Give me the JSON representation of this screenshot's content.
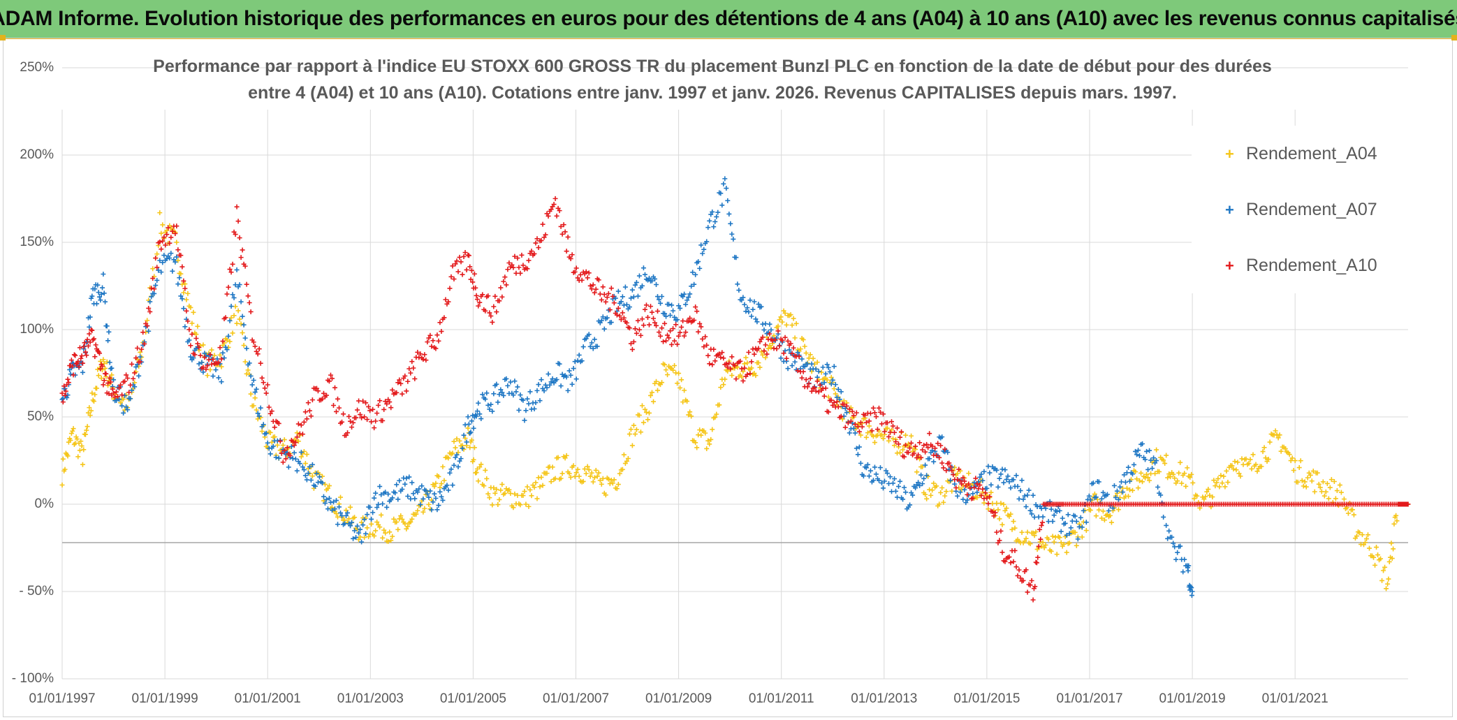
{
  "banner": {
    "title": "ADAM Informe. Evolution historique des performances en euros pour des détentions de 4 ans (A04) à 10 ans (A10) avec les revenus connus capitalisés"
  },
  "colors": {
    "banner_bg": "#7ec97a",
    "accent": "#e3b21c",
    "grid": "#d9d9d9",
    "zero_line": "#a6a6a6",
    "text": "#595959"
  },
  "chart_data": {
    "type": "scatter",
    "title_lines": [
      "Performance par rapport à l'indice EU STOXX 600 GROSS TR  du placement Bunzl PLC en fonction de la date de début pour des durées",
      "entre 4 (A04) et 10 ans (A10). Cotations entre janv. 1997 et janv. 2026. Revenus CAPITALISES depuis mars. 1997."
    ],
    "xlabel": "",
    "ylabel": "",
    "xlim": [
      1997.0,
      2023.2
    ],
    "ylim": [
      -100,
      250
    ],
    "y_ticks": [
      250,
      200,
      150,
      100,
      50,
      0,
      -50,
      -100
    ],
    "y_tick_labels": [
      "250%",
      "200%",
      "150%",
      "100%",
      "50%",
      "0%",
      "- 50%",
      "- 100%"
    ],
    "x_ticks": [
      1997,
      1999,
      2001,
      2003,
      2005,
      2007,
      2009,
      2011,
      2013,
      2015,
      2017,
      2019,
      2021
    ],
    "x_tick_labels": [
      "01/01/1997",
      "01/01/1999",
      "01/01/2001",
      "01/01/2003",
      "01/01/2005",
      "01/01/2007",
      "01/01/2009",
      "01/01/2011",
      "01/01/2013",
      "01/01/2015",
      "01/01/2017",
      "01/01/2019",
      "01/01/2021"
    ],
    "marker": "+",
    "legend_position": "top-right",
    "series": [
      {
        "name": "Rendement_A04",
        "color": "#f5c518",
        "x": [
          1997.0,
          1997.2,
          1997.4,
          1997.6,
          1997.8,
          1998.0,
          1998.3,
          1998.6,
          1998.9,
          1999.2,
          1999.5,
          1999.8,
          2000.1,
          2000.4,
          2000.7,
          2001.0,
          2001.3,
          2001.6,
          2001.9,
          2002.2,
          2002.5,
          2002.8,
          2003.1,
          2003.4,
          2003.7,
          2004.0,
          2004.3,
          2004.6,
          2004.9,
          2005.1,
          2005.4,
          2005.7,
          2006.0,
          2006.3,
          2006.6,
          2006.9,
          2007.2,
          2007.5,
          2007.8,
          2008.1,
          2008.4,
          2008.7,
          2009.0,
          2009.3,
          2009.6,
          2009.9,
          2010.2,
          2010.5,
          2010.8,
          2011.1,
          2011.4,
          2011.7,
          2012.0,
          2012.3,
          2012.6,
          2012.9,
          2013.2,
          2013.5,
          2013.8,
          2014.1,
          2014.4,
          2014.7,
          2015.0,
          2015.3,
          2015.6,
          2015.9,
          2016.2,
          2016.5,
          2016.8,
          2017.1,
          2017.4,
          2017.7,
          2018.0,
          2018.3,
          2018.6,
          2018.9,
          2019.2,
          2019.5,
          2019.8,
          2020.1,
          2020.4,
          2020.7,
          2021.0,
          2021.3,
          2021.6,
          2021.9,
          2022.2,
          2022.5,
          2022.8,
          2023.0,
          2023.2
        ],
        "y": [
          18,
          40,
          28,
          62,
          82,
          65,
          55,
          95,
          160,
          150,
          110,
          80,
          85,
          110,
          60,
          35,
          30,
          38,
          15,
          5,
          -5,
          -15,
          -12,
          -15,
          -12,
          -5,
          10,
          30,
          38,
          20,
          5,
          5,
          3,
          10,
          20,
          22,
          18,
          10,
          15,
          40,
          55,
          75,
          72,
          40,
          35,
          75,
          78,
          80,
          95,
          108,
          90,
          75,
          65,
          50,
          45,
          40,
          35,
          38,
          10,
          5,
          15,
          10,
          5,
          -5,
          -15,
          -20,
          -25,
          -25,
          -15,
          0,
          -5,
          10,
          15,
          25,
          20,
          15,
          0,
          10,
          25,
          20,
          30,
          38,
          20,
          15,
          10,
          5,
          -15,
          -25,
          -45,
          0,
          0
        ]
      },
      {
        "name": "Rendement_A07",
        "color": "#1f77c4",
        "x": [
          1997.0,
          1997.2,
          1997.4,
          1997.6,
          1997.8,
          1998.0,
          1998.3,
          1998.6,
          1998.9,
          1999.2,
          1999.5,
          1999.8,
          2000.1,
          2000.4,
          2000.7,
          2001.0,
          2001.3,
          2001.6,
          2001.9,
          2002.2,
          2002.5,
          2002.8,
          2003.1,
          2003.4,
          2003.7,
          2004.0,
          2004.3,
          2004.6,
          2004.9,
          2005.1,
          2005.4,
          2005.7,
          2006.0,
          2006.3,
          2006.6,
          2006.9,
          2007.2,
          2007.5,
          2007.8,
          2008.1,
          2008.4,
          2008.7,
          2009.0,
          2009.3,
          2009.6,
          2009.9,
          2010.2,
          2010.5,
          2010.8,
          2011.1,
          2011.4,
          2011.7,
          2012.0,
          2012.3,
          2012.6,
          2012.9,
          2013.2,
          2013.5,
          2013.8,
          2014.1,
          2014.4,
          2014.7,
          2015.0,
          2015.3,
          2015.6,
          2015.9,
          2016.2,
          2016.5,
          2016.8,
          2017.1,
          2017.4,
          2017.7,
          2018.0,
          2018.3,
          2018.6,
          2018.9,
          2019.0
        ],
        "y": [
          60,
          75,
          80,
          120,
          125,
          65,
          55,
          95,
          135,
          140,
          90,
          80,
          75,
          130,
          70,
          35,
          30,
          25,
          15,
          0,
          -10,
          -20,
          5,
          5,
          10,
          5,
          0,
          15,
          45,
          55,
          60,
          70,
          55,
          65,
          75,
          70,
          90,
          100,
          115,
          120,
          135,
          115,
          110,
          130,
          160,
          180,
          120,
          110,
          100,
          85,
          80,
          70,
          75,
          50,
          20,
          15,
          10,
          0,
          20,
          35,
          10,
          5,
          15,
          15,
          10,
          0,
          -5,
          -10,
          -15,
          10,
          0,
          15,
          30,
          20,
          -25,
          -35,
          -50
        ]
      },
      {
        "name": "Rendement_A10",
        "color": "#e31a1c",
        "x": [
          1997.0,
          1997.2,
          1997.4,
          1997.6,
          1997.8,
          1998.0,
          1998.3,
          1998.6,
          1998.9,
          1999.2,
          1999.5,
          1999.8,
          2000.1,
          2000.4,
          2000.7,
          2001.0,
          2001.3,
          2001.6,
          2001.9,
          2002.2,
          2002.5,
          2002.8,
          2003.1,
          2003.4,
          2003.7,
          2004.0,
          2004.3,
          2004.6,
          2004.9,
          2005.1,
          2005.4,
          2005.7,
          2006.0,
          2006.3,
          2006.6,
          2006.9,
          2007.2,
          2007.5,
          2007.8,
          2008.1,
          2008.4,
          2008.7,
          2009.0,
          2009.3,
          2009.6,
          2009.9,
          2010.2,
          2010.5,
          2010.8,
          2011.1,
          2011.4,
          2011.7,
          2012.0,
          2012.3,
          2012.6,
          2012.9,
          2013.2,
          2013.5,
          2013.8,
          2014.1,
          2014.4,
          2014.7,
          2015.0,
          2015.3,
          2015.6,
          2015.9,
          2016.1,
          2016.5,
          2017.0,
          2017.5,
          2018.0,
          2018.5,
          2019.0,
          2019.5,
          2020.0,
          2020.5,
          2021.0,
          2021.5,
          2022.0,
          2022.5,
          2023.0,
          2023.2
        ],
        "y": [
          60,
          80,
          85,
          95,
          75,
          60,
          70,
          95,
          150,
          160,
          95,
          80,
          85,
          165,
          100,
          65,
          30,
          40,
          60,
          70,
          45,
          55,
          50,
          60,
          70,
          85,
          95,
          130,
          140,
          120,
          110,
          135,
          140,
          150,
          175,
          140,
          130,
          120,
          115,
          95,
          110,
          100,
          95,
          110,
          85,
          80,
          75,
          85,
          95,
          90,
          75,
          65,
          55,
          50,
          45,
          50,
          40,
          30,
          35,
          30,
          15,
          10,
          5,
          -25,
          -35,
          -50,
          0,
          0,
          0,
          0,
          0,
          0,
          0,
          0,
          0,
          0,
          0,
          0,
          0,
          0,
          0,
          0
        ]
      }
    ]
  }
}
